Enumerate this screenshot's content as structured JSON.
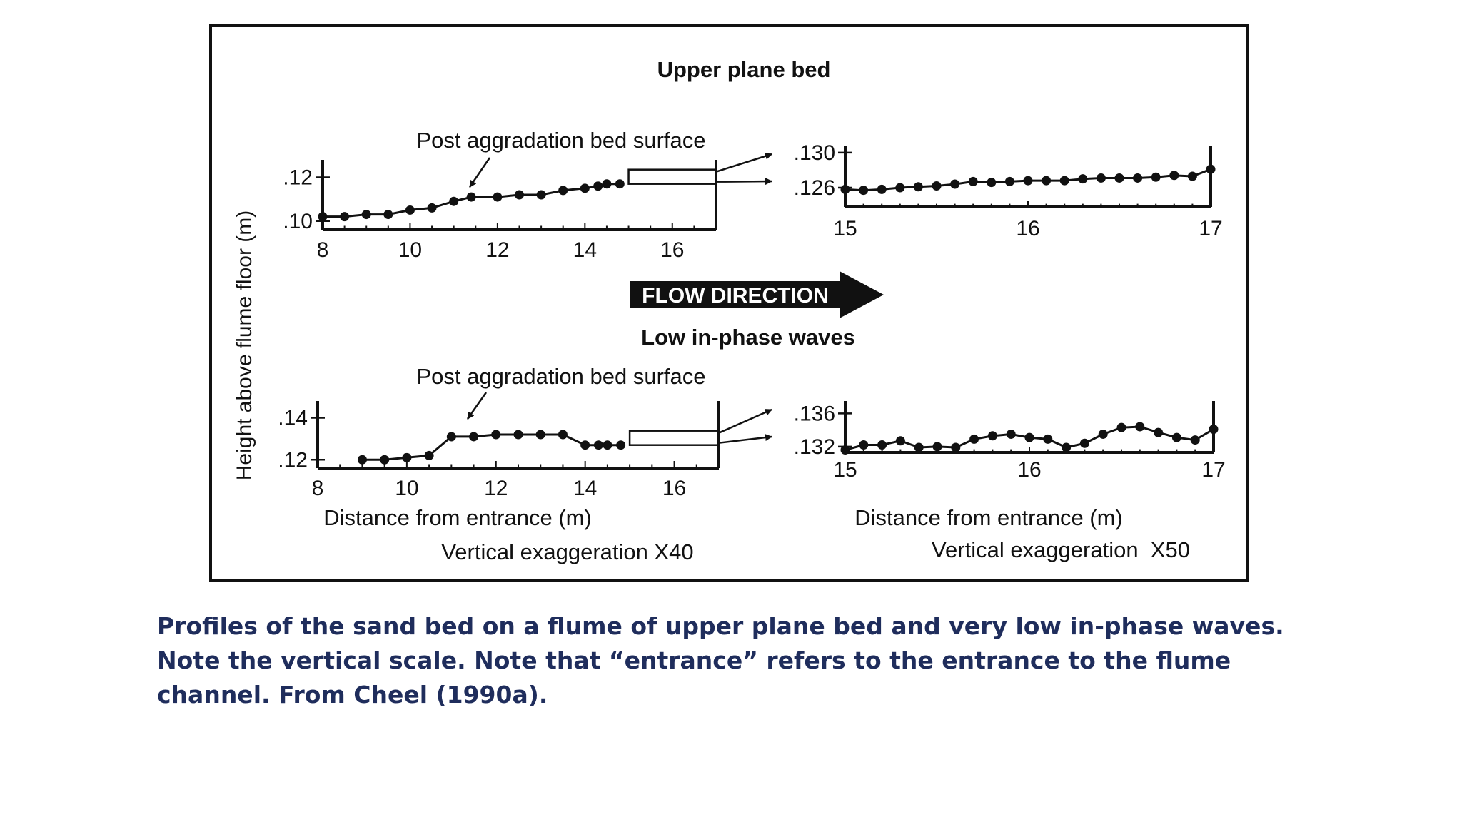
{
  "figure": {
    "y_axis_label": "Height above flume floor (m)",
    "flow_label": "FLOW DIRECTION",
    "colors": {
      "ink": "#111111",
      "caption": "#1f2d5c"
    }
  },
  "caption": "Profiles of the sand bed on a flume of upper plane bed and very low in-phase waves. Note the vertical scale. Note that “entrance” refers to the entrance to the flume channel. From Cheel (1990a).",
  "chart_data": [
    {
      "type": "line",
      "group": "upper",
      "title": "Upper plane bed",
      "annotation": "Post aggradation bed surface",
      "xlabel": "",
      "ylabel": "Height above flume floor (m)",
      "xlim": [
        8,
        17
      ],
      "ylim": [
        0.096,
        0.128
      ],
      "xticks": [
        "8",
        "10",
        "12",
        "14",
        "16"
      ],
      "yticks": [
        ".10",
        ".12"
      ],
      "yticks_values": [
        0.1,
        0.12
      ],
      "detail_box_x": [
        15,
        17
      ],
      "series": [
        {
          "x": [
            8,
            8.5,
            9,
            9.5,
            10,
            10.5,
            11,
            11.4,
            12,
            12.5,
            13,
            13.5,
            14,
            14.3,
            14.5,
            14.8
          ],
          "y": [
            0.102,
            0.102,
            0.103,
            0.103,
            0.105,
            0.106,
            0.109,
            0.111,
            0.111,
            0.112,
            0.112,
            0.114,
            0.115,
            0.116,
            0.117,
            0.117
          ]
        }
      ]
    },
    {
      "type": "line",
      "group": "upper",
      "title": "",
      "xlabel": "",
      "ylabel": "",
      "xlim": [
        15,
        17
      ],
      "ylim": [
        0.1238,
        0.1308
      ],
      "xticks": [
        "15",
        "16",
        "17"
      ],
      "yticks": [
        ".130",
        ".126"
      ],
      "yticks_values": [
        0.13,
        0.126
      ],
      "series": [
        {
          "x": [
            15,
            15.1,
            15.2,
            15.3,
            15.4,
            15.5,
            15.6,
            15.7,
            15.8,
            15.9,
            16,
            16.1,
            16.2,
            16.3,
            16.4,
            16.5,
            16.6,
            16.7,
            16.8,
            16.9,
            17
          ],
          "y": [
            0.1258,
            0.1257,
            0.1258,
            0.126,
            0.1261,
            0.1262,
            0.1264,
            0.1267,
            0.1266,
            0.1267,
            0.1268,
            0.1268,
            0.1268,
            0.127,
            0.1271,
            0.1271,
            0.1271,
            0.1272,
            0.1274,
            0.1273,
            0.1281
          ]
        }
      ]
    },
    {
      "type": "line",
      "group": "lower",
      "title": "Low in-phase waves",
      "annotation": "Post aggradation bed surface",
      "xlabel": "Distance from entrance (m)",
      "ylabel": "",
      "note": "Vertical exaggeration X40",
      "xlim": [
        8,
        17
      ],
      "ylim": [
        0.116,
        0.148
      ],
      "xticks": [
        "8",
        "10",
        "12",
        "14",
        "16"
      ],
      "yticks": [
        ".14",
        ".12"
      ],
      "yticks_values": [
        0.14,
        0.12
      ],
      "detail_box_x": [
        15,
        17
      ],
      "series": [
        {
          "x": [
            9,
            9.5,
            10,
            10.5,
            11,
            11.5,
            12,
            12.5,
            13,
            13.5,
            14,
            14.3,
            14.5,
            14.8
          ],
          "y": [
            0.12,
            0.12,
            0.121,
            0.122,
            0.131,
            0.131,
            0.132,
            0.132,
            0.132,
            0.132,
            0.127,
            0.127,
            0.127,
            0.127
          ]
        }
      ]
    },
    {
      "type": "line",
      "group": "lower",
      "title": "",
      "xlabel": "Distance from entrance (m)",
      "ylabel": "",
      "note": "Vertical exaggeration  X50",
      "xlim": [
        15,
        17
      ],
      "ylim": [
        0.1313,
        0.1375
      ],
      "xticks": [
        "15",
        "16",
        "17"
      ],
      "yticks": [
        ".136",
        ".132"
      ],
      "yticks_values": [
        0.136,
        0.132
      ],
      "series": [
        {
          "x": [
            15,
            15.1,
            15.2,
            15.3,
            15.4,
            15.5,
            15.6,
            15.7,
            15.8,
            15.9,
            16,
            16.1,
            16.2,
            16.3,
            16.4,
            16.5,
            16.6,
            16.7,
            16.8,
            16.9,
            17
          ],
          "y": [
            0.1316,
            0.1322,
            0.1322,
            0.1327,
            0.1319,
            0.132,
            0.1319,
            0.1329,
            0.1333,
            0.1335,
            0.1331,
            0.1329,
            0.1319,
            0.1324,
            0.1335,
            0.1343,
            0.1344,
            0.1337,
            0.1331,
            0.1328,
            0.1341
          ]
        }
      ]
    }
  ]
}
